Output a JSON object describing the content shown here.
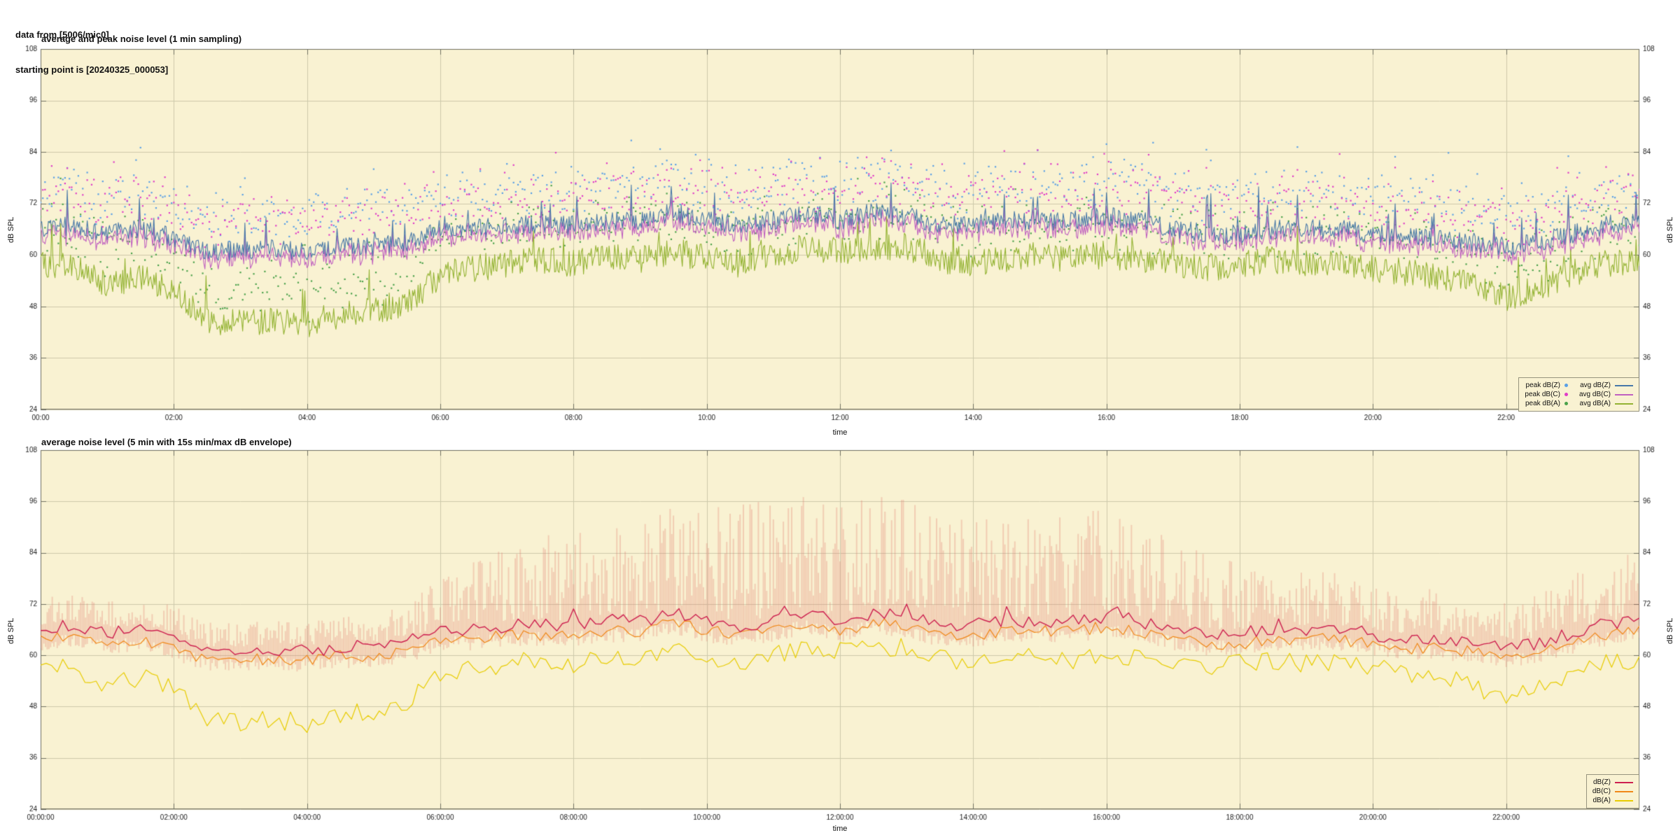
{
  "header": {
    "source_line": "data from [5006/mic0]",
    "start_line": "starting point is [20240325_000053]"
  },
  "colors": {
    "page_background": "#ffffff",
    "plot_background": "#f9f2d2",
    "grid": "#cdc9ab",
    "border": "#6f6f60",
    "text": "#1a1a1a",
    "envelope": "rgba(228,110,100,0.28)"
  },
  "chart_data": [
    {
      "type": "scatter",
      "title": "average and peak noise level (1 min sampling)",
      "xlabel": "time",
      "ylabel": "dB SPL",
      "ylabel_right": "dB SPL",
      "ylim": [
        24,
        108
      ],
      "yticks": [
        24,
        36,
        48,
        60,
        72,
        84,
        96,
        108
      ],
      "xmin": 0,
      "xmax": 1440,
      "xtick_minutes": [
        0,
        120,
        240,
        360,
        480,
        600,
        720,
        840,
        960,
        1080,
        1200,
        1320
      ],
      "xtick_labels": [
        "00:00",
        "02:00",
        "04:00",
        "06:00",
        "08:00",
        "10:00",
        "12:00",
        "14:00",
        "16:00",
        "18:00",
        "20:00",
        "22:00"
      ],
      "grid": true,
      "legend_position": "bottom-right",
      "seed": 20240325,
      "baselines": {
        "step_min": 30,
        "z": [
          66,
          67,
          65,
          66,
          64,
          61,
          61,
          61.5,
          61,
          62,
          62,
          63,
          66,
          66,
          67,
          67,
          67,
          68,
          68,
          70,
          68,
          67,
          68,
          70,
          68,
          70,
          69,
          67,
          67,
          68,
          68,
          68,
          69,
          68,
          66,
          65,
          65,
          66,
          66,
          66,
          65,
          64,
          64,
          63,
          62,
          63,
          65,
          67,
          68
        ],
        "a": [
          58,
          57,
          53,
          55,
          52,
          45,
          44,
          45,
          44,
          46,
          47,
          49,
          55,
          57,
          58,
          59,
          58,
          60,
          59,
          61,
          59,
          58,
          60,
          62,
          61,
          62,
          62,
          59,
          58,
          59,
          60,
          59,
          60,
          59,
          58,
          57,
          58,
          59,
          58,
          58,
          57,
          56,
          55,
          53,
          50,
          52,
          56,
          58,
          59
        ],
        "c_offset": -1.8
      },
      "series": [
        {
          "name": "peak dB(Z)",
          "kind": "scatter",
          "color": "#5aa0e6",
          "offset": 3.5,
          "spread": 9
        },
        {
          "name": "peak dB(C)",
          "kind": "scatter",
          "color": "#e03cc8",
          "offset": 4,
          "spread": 9
        },
        {
          "name": "peak dB(A)",
          "kind": "scatter",
          "color": "#4ba24b",
          "offset": 3.5,
          "spread": 8
        },
        {
          "name": "avg dB(Z)",
          "kind": "line",
          "color": "#4878a8",
          "jitter": 4.5
        },
        {
          "name": "avg dB(C)",
          "kind": "line",
          "color": "#c060c0",
          "jitter": 4.5
        },
        {
          "name": "avg dB(A)",
          "kind": "line",
          "color": "#93b332",
          "jitter": 6.5
        }
      ]
    },
    {
      "type": "line",
      "title": "average noise level (5 min with 15s min/max dB envelope)",
      "xlabel": "time",
      "ylabel": "dB SPL",
      "ylabel_right": "dB SPL",
      "ylim": [
        24,
        108
      ],
      "yticks": [
        24,
        36,
        48,
        60,
        72,
        84,
        96,
        108
      ],
      "xmin": 0,
      "xmax": 1440,
      "xtick_minutes": [
        0,
        120,
        240,
        360,
        480,
        600,
        720,
        840,
        960,
        1080,
        1200,
        1320
      ],
      "xtick_labels": [
        "00:00:00",
        "02:00:00",
        "04:00:00",
        "06:00:00",
        "08:00:00",
        "10:00:00",
        "12:00:00",
        "14:00:00",
        "16:00:00",
        "18:00:00",
        "20:00:00",
        "22:00:00"
      ],
      "grid": true,
      "legend_position": "bottom-right",
      "seed": 53,
      "baselines": {
        "step_min": 30,
        "z": [
          66,
          67,
          65,
          66,
          64,
          61,
          61,
          61.5,
          61,
          62,
          62,
          63,
          66,
          66,
          67,
          67,
          67,
          68,
          68,
          70,
          68,
          67,
          68,
          70,
          68,
          70,
          69,
          67,
          67,
          68,
          68,
          68,
          69,
          68,
          66,
          65,
          65,
          66,
          66,
          66,
          65,
          64,
          64,
          63,
          62,
          63,
          65,
          67,
          68
        ],
        "a": [
          58,
          57,
          53,
          55,
          52,
          45,
          44,
          45,
          44,
          46,
          47,
          49,
          55,
          57,
          58,
          59,
          58,
          60,
          59,
          61,
          59,
          58,
          60,
          62,
          61,
          62,
          62,
          59,
          58,
          59,
          60,
          59,
          60,
          59,
          58,
          57,
          58,
          59,
          58,
          58,
          57,
          56,
          55,
          53,
          50,
          52,
          56,
          58,
          59
        ],
        "c_offset": -2.3
      },
      "envelope": {
        "activity_step_min": 60,
        "activity": [
          0.25,
          0.25,
          0.25,
          0.22,
          0.22,
          0.25,
          0.45,
          0.7,
          0.85,
          0.9,
          1.0,
          1.1,
          1.05,
          1.1,
          0.9,
          0.9,
          0.95,
          0.8,
          0.6,
          0.5,
          0.45,
          0.4,
          0.35,
          0.5,
          0.6
        ],
        "max_rise_db": 26,
        "min_drop_db": [
          1.5,
          5
        ],
        "cap_db": 97
      },
      "series": [
        {
          "name": "dB(Z)",
          "kind": "line",
          "color": "#cd2050",
          "width": 1.4
        },
        {
          "name": "dB(C)",
          "kind": "line",
          "color": "#f08818",
          "width": 1.2
        },
        {
          "name": "dB(A)",
          "kind": "line",
          "color": "#e8cc00",
          "width": 1.2
        }
      ]
    }
  ]
}
